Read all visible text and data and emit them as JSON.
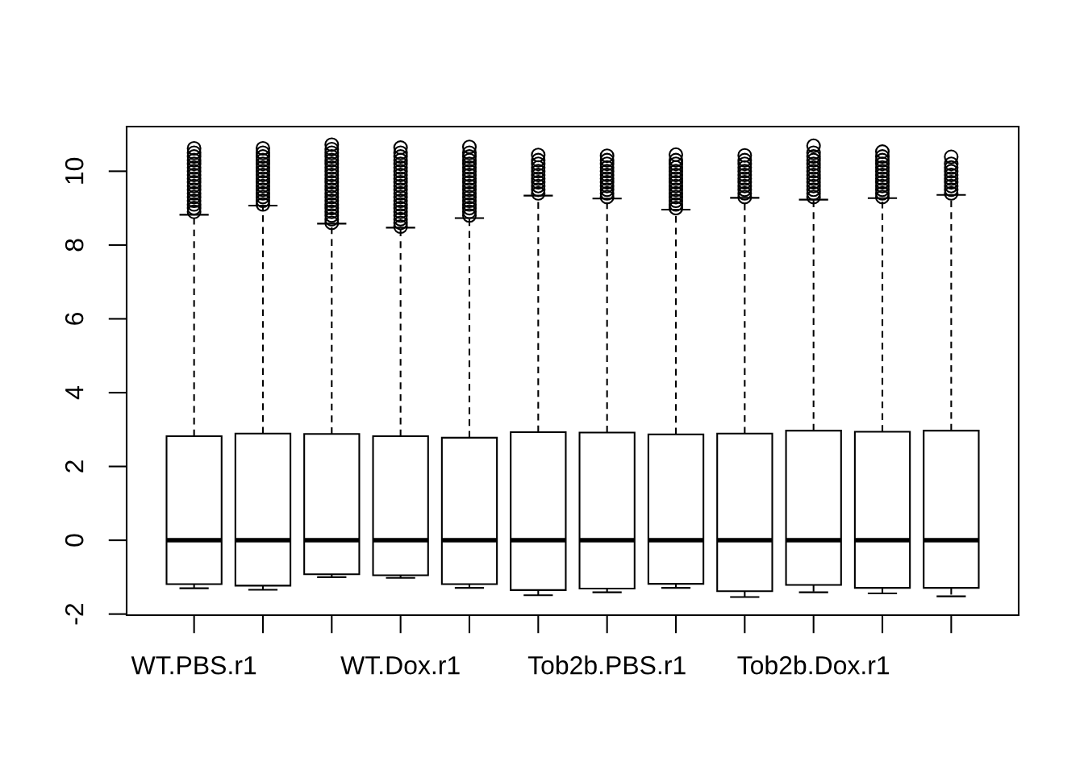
{
  "chart_data": {
    "type": "box",
    "categories": [
      "WT.PBS.r1",
      null,
      null,
      "WT.Dox.r1",
      null,
      null,
      "Tob2b.PBS.r1",
      null,
      null,
      "Tob2b.Dox.r1",
      null,
      null
    ],
    "color": "#000000",
    "marker": "circle",
    "line_style": "dashed",
    "ylim": [
      -2.03,
      11.21
    ],
    "yticks": [
      -2,
      0,
      2,
      4,
      6,
      8,
      10
    ],
    "boxes": [
      {
        "low": -1.3,
        "q1": -1.19,
        "median": 0,
        "q3": 2.82,
        "high": 8.82,
        "outliers": [
          8.9,
          9.0,
          9.1,
          9.2,
          9.3,
          9.4,
          9.5,
          9.6,
          9.7,
          9.8,
          9.9,
          10.0,
          10.1,
          10.2,
          10.3,
          10.4,
          10.5,
          10.62
        ]
      },
      {
        "low": -1.34,
        "q1": -1.23,
        "median": 0,
        "q3": 2.89,
        "high": 9.07,
        "outliers": [
          9.1,
          9.2,
          9.3,
          9.4,
          9.5,
          9.6,
          9.7,
          9.8,
          9.9,
          10.0,
          10.1,
          10.2,
          10.3,
          10.4,
          10.5,
          10.62
        ]
      },
      {
        "low": -1.0,
        "q1": -0.92,
        "median": 0,
        "q3": 2.88,
        "high": 8.58,
        "outliers": [
          8.6,
          8.7,
          8.8,
          8.9,
          9.0,
          9.1,
          9.2,
          9.3,
          9.4,
          9.5,
          9.6,
          9.7,
          9.8,
          9.9,
          10.0,
          10.1,
          10.2,
          10.3,
          10.4,
          10.5,
          10.6,
          10.72
        ]
      },
      {
        "low": -1.02,
        "q1": -0.95,
        "median": 0,
        "q3": 2.82,
        "high": 8.47,
        "outliers": [
          8.5,
          8.6,
          8.7,
          8.8,
          8.9,
          9.0,
          9.1,
          9.2,
          9.3,
          9.4,
          9.5,
          9.6,
          9.7,
          9.8,
          9.9,
          10.0,
          10.1,
          10.2,
          10.3,
          10.4,
          10.5,
          10.64
        ]
      },
      {
        "low": -1.29,
        "q1": -1.19,
        "median": 0,
        "q3": 2.78,
        "high": 8.73,
        "outliers": [
          8.8,
          8.9,
          9.0,
          9.1,
          9.2,
          9.3,
          9.4,
          9.5,
          9.6,
          9.7,
          9.8,
          9.9,
          10.0,
          10.1,
          10.2,
          10.3,
          10.4,
          10.5,
          10.66
        ]
      },
      {
        "low": -1.49,
        "q1": -1.35,
        "median": 0,
        "q3": 2.93,
        "high": 9.34,
        "outliers": [
          9.4,
          9.5,
          9.6,
          9.7,
          9.8,
          9.9,
          10.0,
          10.1,
          10.2,
          10.3,
          10.44
        ]
      },
      {
        "low": -1.41,
        "q1": -1.31,
        "median": 0,
        "q3": 2.92,
        "high": 9.26,
        "outliers": [
          9.3,
          9.4,
          9.5,
          9.6,
          9.7,
          9.8,
          9.9,
          10.0,
          10.1,
          10.2,
          10.3,
          10.42
        ]
      },
      {
        "low": -1.29,
        "q1": -1.18,
        "median": 0,
        "q3": 2.87,
        "high": 8.96,
        "outliers": [
          9.0,
          9.1,
          9.2,
          9.3,
          9.4,
          9.5,
          9.6,
          9.7,
          9.8,
          9.9,
          10.0,
          10.1,
          10.2,
          10.3,
          10.45
        ]
      },
      {
        "low": -1.54,
        "q1": -1.38,
        "median": 0,
        "q3": 2.89,
        "high": 9.28,
        "outliers": [
          9.3,
          9.4,
          9.5,
          9.6,
          9.7,
          9.8,
          9.9,
          10.0,
          10.1,
          10.2,
          10.3,
          10.43
        ]
      },
      {
        "low": -1.41,
        "q1": -1.21,
        "median": 0,
        "q3": 2.97,
        "high": 9.23,
        "outliers": [
          9.3,
          9.4,
          9.5,
          9.6,
          9.7,
          9.8,
          9.9,
          10.0,
          10.1,
          10.2,
          10.3,
          10.4,
          10.5,
          10.69
        ]
      },
      {
        "low": -1.44,
        "q1": -1.29,
        "median": 0,
        "q3": 2.94,
        "high": 9.27,
        "outliers": [
          9.3,
          9.4,
          9.5,
          9.6,
          9.7,
          9.8,
          9.9,
          10.0,
          10.1,
          10.2,
          10.3,
          10.4,
          10.53
        ]
      },
      {
        "low": -1.52,
        "q1": -1.29,
        "median": 0,
        "q3": 2.97,
        "high": 9.36,
        "outliers": [
          9.4,
          9.5,
          9.6,
          9.7,
          9.8,
          9.9,
          10.0,
          10.1,
          10.2,
          10.39
        ]
      }
    ]
  }
}
